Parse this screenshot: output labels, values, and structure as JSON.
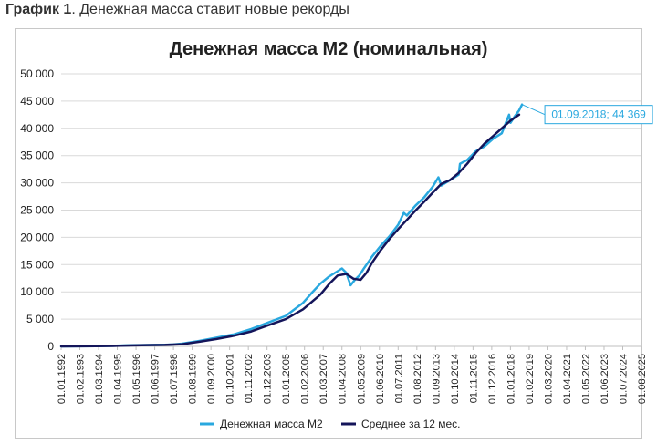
{
  "caption": {
    "prefix": "График 1",
    "text": ". Денежная масса ставит новые рекорды"
  },
  "colors": {
    "m2": "#29a8df",
    "avg": "#14155a",
    "grid": "#d9d9d9",
    "callout": "#29a8df"
  },
  "chart_data": {
    "type": "line",
    "title": "Денежная масса М2 (номинальная)",
    "xlabel": "",
    "ylabel": "",
    "ylim": [
      0,
      50000
    ],
    "yticks": [
      "0",
      "5 000",
      "10 000",
      "15 000",
      "20 000",
      "25 000",
      "30 000",
      "35 000",
      "40 000",
      "45 000",
      "50 000"
    ],
    "xlim": [
      1992.0,
      2025.583
    ],
    "xticks": [
      "01.01.1992",
      "01.02.1993",
      "01.03.1994",
      "01.04.1995",
      "01.05.1996",
      "01.06.1997",
      "01.07.1998",
      "01.08.1999",
      "01.09.2000",
      "01.10.2001",
      "01.11.2002",
      "01.12.2003",
      "01.01.2005",
      "01.02.2006",
      "01.03.2007",
      "01.04.2008",
      "01.05.2009",
      "01.06.2010",
      "01.07.2011",
      "01.08.2012",
      "01.09.2013",
      "01.10.2014",
      "01.11.2015",
      "01.12.2016",
      "01.01.2018",
      "01.02.2019",
      "01.03.2020",
      "01.04.2021",
      "01.05.2022",
      "01.06.2023",
      "01.07.2024",
      "01.08.2025"
    ],
    "grid": true,
    "legend": "bottom",
    "series": [
      {
        "name": "Денежная масса М2",
        "color": "#29a8df",
        "x": [
          1992.0,
          1993.0,
          1994.0,
          1995.0,
          1996.0,
          1997.0,
          1998.0,
          1998.5,
          1999.0,
          2000.0,
          2001.0,
          2002.0,
          2003.0,
          2004.0,
          2005.0,
          2006.0,
          2006.5,
          2007.0,
          2007.5,
          2008.0,
          2008.25,
          2008.5,
          2008.75,
          2009.0,
          2009.25,
          2009.5,
          2010.0,
          2010.5,
          2011.0,
          2011.5,
          2011.83,
          2012.0,
          2012.5,
          2013.0,
          2013.5,
          2013.83,
          2014.0,
          2014.5,
          2015.0,
          2015.08,
          2015.5,
          2016.0,
          2016.5,
          2017.0,
          2017.5,
          2017.92,
          2018.0,
          2018.25,
          2018.5,
          2018.67
        ],
        "y": [
          0,
          20,
          50,
          100,
          200,
          250,
          300,
          350,
          500,
          1000,
          1600,
          2200,
          3200,
          4400,
          5600,
          8000,
          9800,
          11500,
          12800,
          13800,
          14300,
          13500,
          11200,
          12200,
          13000,
          14200,
          16500,
          18500,
          20200,
          22300,
          24500,
          24000,
          25800,
          27300,
          29300,
          31000,
          29500,
          30500,
          31500,
          33500,
          34200,
          35800,
          36700,
          38100,
          39100,
          42500,
          41000,
          42200,
          43300,
          44369
        ]
      },
      {
        "name": "Среднее за 12 мес.",
        "color": "#14155a",
        "x": [
          1992.0,
          1993.0,
          1994.0,
          1995.0,
          1996.0,
          1997.0,
          1998.0,
          1999.0,
          2000.0,
          2001.0,
          2002.0,
          2003.0,
          2004.0,
          2005.0,
          2006.0,
          2007.0,
          2007.5,
          2008.0,
          2008.5,
          2008.92,
          2009.33,
          2009.67,
          2010.0,
          2010.5,
          2011.0,
          2011.5,
          2012.0,
          2012.5,
          2013.0,
          2013.5,
          2014.0,
          2014.5,
          2015.0,
          2015.5,
          2016.0,
          2016.5,
          2017.0,
          2017.5,
          2018.0,
          2018.5
        ],
        "y": [
          0,
          10,
          40,
          80,
          170,
          230,
          270,
          400,
          850,
          1350,
          1950,
          2750,
          3900,
          5000,
          6800,
          9500,
          11400,
          13000,
          13300,
          12400,
          12200,
          13500,
          15400,
          17700,
          19700,
          21500,
          23200,
          24900,
          26500,
          28200,
          29800,
          30500,
          31800,
          33500,
          35500,
          37200,
          38600,
          40000,
          41400,
          42500
        ]
      }
    ],
    "annotations": [
      {
        "text": "01.09.2018; 44 369",
        "x": 2018.67,
        "y": 44369
      }
    ]
  }
}
